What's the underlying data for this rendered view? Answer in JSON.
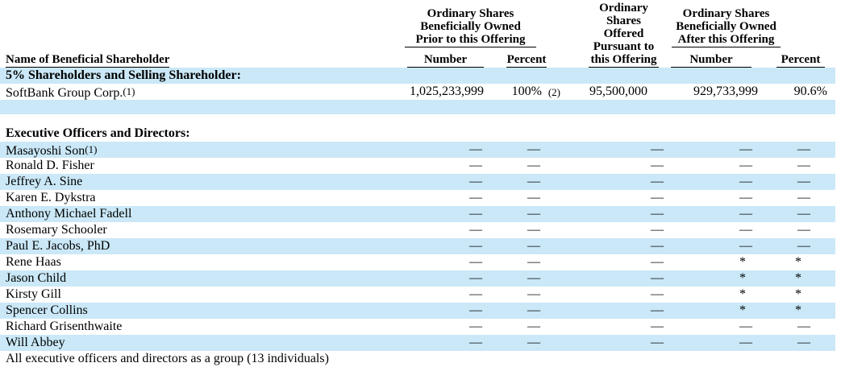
{
  "table": {
    "shade_color": "#cae8f7",
    "header": {
      "name_col": "Name of Beneficial Shareholder",
      "group1": {
        "lines": [
          "Ordinary Shares",
          "Beneficially Owned",
          "Prior to this Offering"
        ],
        "sub": [
          "Number",
          "Percent"
        ]
      },
      "group2": {
        "lines": [
          "Ordinary",
          "Shares Offered",
          "Pursuant to",
          "this Offering"
        ]
      },
      "group3": {
        "lines": [
          "Ordinary Shares",
          "Beneficially Owned",
          "After this Offering"
        ],
        "sub": [
          "Number",
          "Percent"
        ]
      }
    },
    "rows": [
      {
        "label": "5% Shareholders and Selling Shareholder:",
        "bold": true,
        "shaded": true,
        "cells": [
          "",
          "",
          "",
          "",
          ""
        ]
      },
      {
        "label": "SoftBank Group Corp.",
        "label_fn": "(1)",
        "shaded": false,
        "cells": [
          "1,025,233,999",
          {
            "v": "100%",
            "fn": "(2)"
          },
          "95,500,000",
          "929,733,999",
          "90.6%"
        ]
      },
      {
        "label": "",
        "shaded": true,
        "cells": [
          "",
          "",
          "",
          "",
          ""
        ]
      },
      {
        "label": "",
        "shaded": false,
        "cells": [
          "",
          "",
          "",
          "",
          ""
        ]
      },
      {
        "label": "Executive Officers and Directors:",
        "bold": true,
        "shaded": false,
        "cells": [
          "",
          "",
          "",
          "",
          ""
        ]
      },
      {
        "label": "Masayoshi Son",
        "label_fn": "(1)",
        "shaded": true,
        "cells": [
          "—",
          "—",
          "—",
          "—",
          "—"
        ]
      },
      {
        "label": "Ronald D. Fisher",
        "shaded": false,
        "cells": [
          "—",
          "—",
          "—",
          "—",
          "—"
        ]
      },
      {
        "label": "Jeffrey A. Sine",
        "shaded": true,
        "cells": [
          "—",
          "—",
          "—",
          "—",
          "—"
        ]
      },
      {
        "label": "Karen E. Dykstra",
        "shaded": false,
        "cells": [
          "—",
          "—",
          "—",
          "—",
          "—"
        ]
      },
      {
        "label": "Anthony Michael Fadell",
        "shaded": true,
        "cells": [
          "—",
          "—",
          "—",
          "—",
          "—"
        ]
      },
      {
        "label": "Rosemary Schooler",
        "shaded": false,
        "cells": [
          "—",
          "—",
          "—",
          "—",
          "—"
        ]
      },
      {
        "label": "Paul E. Jacobs, PhD",
        "shaded": true,
        "cells": [
          "—",
          "—",
          "—",
          "—",
          "—"
        ]
      },
      {
        "label": "Rene Haas",
        "shaded": false,
        "cells": [
          "—",
          "—",
          "—",
          "*",
          "*"
        ]
      },
      {
        "label": "Jason Child",
        "shaded": true,
        "cells": [
          "—",
          "—",
          "—",
          "*",
          "*"
        ]
      },
      {
        "label": "Kirsty Gill",
        "shaded": false,
        "cells": [
          "—",
          "—",
          "—",
          "*",
          "*"
        ]
      },
      {
        "label": "Spencer Collins",
        "shaded": true,
        "cells": [
          "—",
          "—",
          "—",
          "*",
          "*"
        ]
      },
      {
        "label": "Richard Grisenthwaite",
        "shaded": false,
        "cells": [
          "—",
          "—",
          "—",
          "—",
          "—"
        ]
      },
      {
        "label": "Will Abbey",
        "shaded": true,
        "cells": [
          "—",
          "—",
          "—",
          "—",
          "—"
        ]
      },
      {
        "label": "All executive officers and directors as a group (13 individuals)",
        "shaded": false,
        "cells": [
          "",
          "",
          "",
          "",
          ""
        ]
      }
    ]
  }
}
